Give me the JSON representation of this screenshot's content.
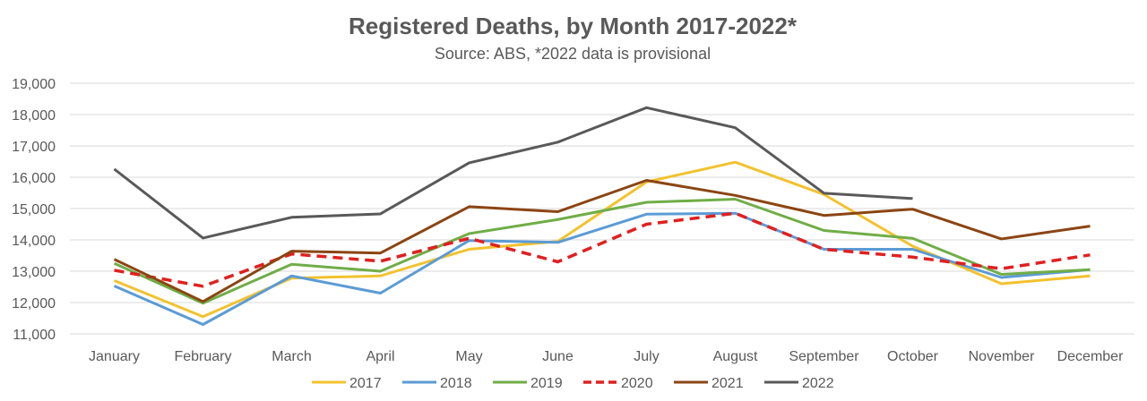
{
  "chart_data": {
    "type": "line",
    "title": "Registered Deaths, by Month 2017-2022*",
    "subtitle": "Source: ABS, *2022 data is provisional",
    "xlabel": "",
    "ylabel": "",
    "categories": [
      "January",
      "February",
      "March",
      "April",
      "May",
      "June",
      "July",
      "August",
      "September",
      "October",
      "November",
      "December"
    ],
    "ylim": [
      11000,
      19000
    ],
    "yticks": [
      11000,
      12000,
      13000,
      14000,
      15000,
      16000,
      17000,
      18000,
      19000
    ],
    "ytick_labels": [
      "11,000",
      "12,000",
      "13,000",
      "14,000",
      "15,000",
      "16,000",
      "17,000",
      "18,000",
      "19,000"
    ],
    "grid": true,
    "legend_position": "bottom",
    "series": [
      {
        "name": "2017",
        "color": "#f2c22e",
        "dashed": false,
        "values": [
          12700,
          11550,
          12780,
          12850,
          13700,
          13950,
          15850,
          16480,
          15450,
          13800,
          12600,
          12850
        ]
      },
      {
        "name": "2018",
        "color": "#5b9bd5",
        "dashed": false,
        "values": [
          12530,
          11300,
          12850,
          12300,
          13980,
          13920,
          14820,
          14850,
          13700,
          13700,
          12800,
          13050
        ]
      },
      {
        "name": "2019",
        "color": "#70ad47",
        "dashed": false,
        "values": [
          13250,
          11980,
          13220,
          13000,
          14200,
          14650,
          15200,
          15300,
          14300,
          14050,
          12900,
          13050
        ]
      },
      {
        "name": "2020",
        "color": "#e02020",
        "dashed": true,
        "values": [
          13030,
          12520,
          13550,
          13320,
          14050,
          13300,
          14500,
          14850,
          13700,
          13450,
          13080,
          13520
        ]
      },
      {
        "name": "2021",
        "color": "#8b4513",
        "dashed": false,
        "values": [
          13380,
          12030,
          13640,
          13580,
          15060,
          14900,
          15900,
          15420,
          14780,
          14980,
          14030,
          14440
        ]
      },
      {
        "name": "2022",
        "color": "#595959",
        "dashed": false,
        "values": [
          16260,
          14060,
          14720,
          14830,
          16460,
          17120,
          18220,
          17580,
          15490,
          15320,
          null,
          null
        ]
      }
    ]
  }
}
